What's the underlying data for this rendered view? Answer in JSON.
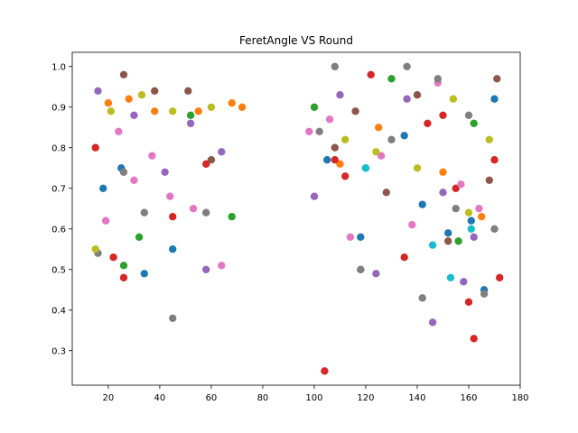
{
  "chart_data": {
    "type": "scatter",
    "title": "FeretAngle VS Round",
    "xlabel": "",
    "ylabel": "",
    "xlim": [
      6,
      180
    ],
    "ylim": [
      0.215,
      1.035
    ],
    "xticks": [
      20,
      40,
      60,
      80,
      100,
      120,
      140,
      160,
      180
    ],
    "yticks": [
      0.3,
      0.4,
      0.5,
      0.6,
      0.7,
      0.8,
      0.9,
      1.0
    ],
    "xtick_labels": [
      "20",
      "40",
      "60",
      "80",
      "100",
      "120",
      "140",
      "160",
      "180"
    ],
    "ytick_labels": [
      "0.3",
      "0.4",
      "0.5",
      "0.6",
      "0.7",
      "0.8",
      "0.9",
      "1.0"
    ],
    "grid": false,
    "legend": false,
    "series_colors": [
      "#1f77b4",
      "#ff7f0e",
      "#2ca02c",
      "#d62728",
      "#9467bd",
      "#8c564b",
      "#e377c2",
      "#7f7f7f",
      "#bcbd22",
      "#17becf"
    ],
    "series": [
      {
        "color": "#1f77b4",
        "x": [
          18,
          25,
          34,
          45,
          135,
          152,
          161,
          166,
          170,
          105,
          142,
          118
        ],
        "y": [
          0.7,
          0.75,
          0.49,
          0.55,
          0.83,
          0.59,
          0.62,
          0.45,
          0.92,
          0.77,
          0.66,
          0.58
        ]
      },
      {
        "color": "#ff7f0e",
        "x": [
          20,
          28,
          38,
          55,
          68,
          72,
          110,
          125,
          150,
          165
        ],
        "y": [
          0.91,
          0.92,
          0.89,
          0.89,
          0.91,
          0.9,
          0.76,
          0.85,
          0.74,
          0.63
        ]
      },
      {
        "color": "#2ca02c",
        "x": [
          26,
          32,
          52,
          68,
          100,
          120,
          130,
          156,
          162
        ],
        "y": [
          0.51,
          0.58,
          0.88,
          0.63,
          0.9,
          0.75,
          0.97,
          0.57,
          0.86
        ]
      },
      {
        "color": "#d62728",
        "x": [
          15,
          22,
          26,
          45,
          58,
          104,
          108,
          112,
          122,
          135,
          144,
          150,
          155,
          160,
          162,
          170,
          172
        ],
        "y": [
          0.8,
          0.53,
          0.48,
          0.63,
          0.76,
          0.25,
          0.77,
          0.73,
          0.98,
          0.53,
          0.86,
          0.88,
          0.7,
          0.42,
          0.33,
          0.77,
          0.48
        ]
      },
      {
        "color": "#9467bd",
        "x": [
          16,
          30,
          42,
          52,
          58,
          64,
          100,
          110,
          118,
          124,
          136,
          146,
          150,
          158,
          162
        ],
        "y": [
          0.94,
          0.88,
          0.74,
          0.86,
          0.5,
          0.79,
          0.68,
          0.93,
          0.5,
          0.49,
          0.92,
          0.37,
          0.69,
          0.47,
          0.58
        ]
      },
      {
        "color": "#8c564b",
        "x": [
          26,
          38,
          51,
          60,
          108,
          116,
          128,
          140,
          152,
          168,
          171
        ],
        "y": [
          0.98,
          0.94,
          0.94,
          0.77,
          0.8,
          0.89,
          0.69,
          0.93,
          0.57,
          0.72,
          0.97
        ]
      },
      {
        "color": "#e377c2",
        "x": [
          19,
          24,
          30,
          37,
          44,
          53,
          64,
          98,
          106,
          114,
          126,
          138,
          148,
          157,
          164
        ],
        "y": [
          0.62,
          0.84,
          0.72,
          0.78,
          0.68,
          0.65,
          0.51,
          0.84,
          0.87,
          0.58,
          0.78,
          0.61,
          0.96,
          0.71,
          0.65
        ]
      },
      {
        "color": "#7f7f7f",
        "x": [
          16,
          26,
          34,
          45,
          58,
          102,
          108,
          118,
          130,
          136,
          142,
          148,
          155,
          160,
          166,
          170
        ],
        "y": [
          0.54,
          0.74,
          0.64,
          0.38,
          0.64,
          0.84,
          1.0,
          0.5,
          0.82,
          1.0,
          0.43,
          0.97,
          0.65,
          0.88,
          0.44,
          0.6
        ]
      },
      {
        "color": "#bcbd22",
        "x": [
          15,
          21,
          33,
          45,
          60,
          112,
          124,
          140,
          154,
          160,
          168
        ],
        "y": [
          0.55,
          0.89,
          0.93,
          0.89,
          0.9,
          0.82,
          0.79,
          0.75,
          0.92,
          0.64,
          0.82
        ]
      },
      {
        "color": "#17becf",
        "x": [
          120,
          146,
          153,
          161
        ],
        "y": [
          0.75,
          0.56,
          0.48,
          0.6
        ]
      }
    ]
  }
}
